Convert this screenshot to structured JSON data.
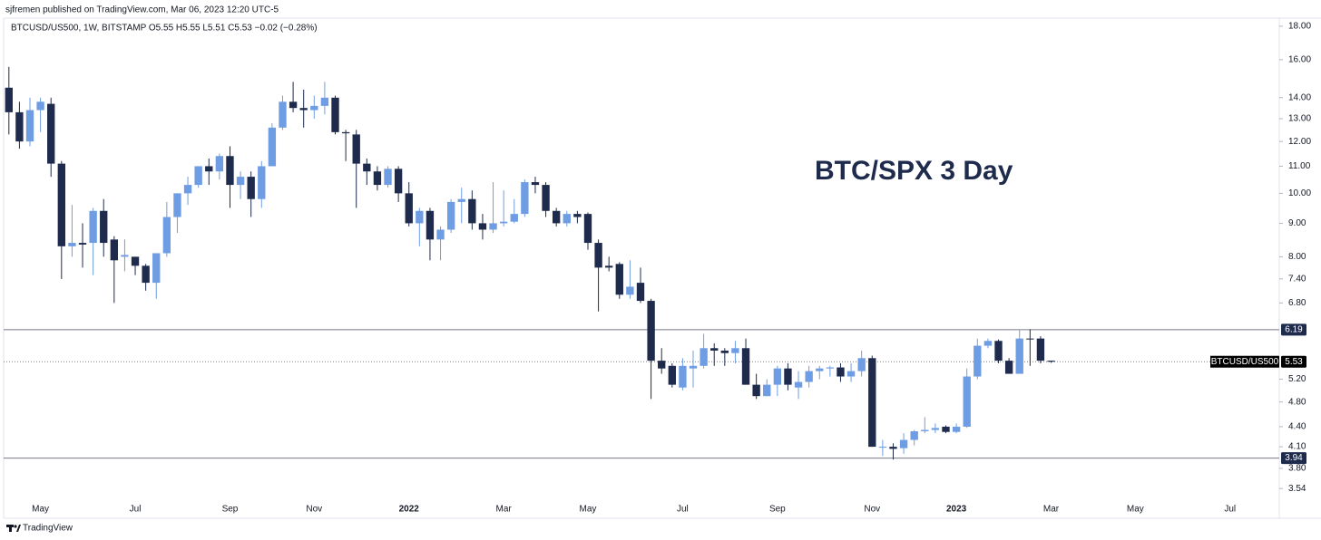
{
  "header": "sjfremen published on TradingView.com, Mar 06, 2023 12:20 UTC-5",
  "footer": "TradingView",
  "chart_data": {
    "type": "candlestick",
    "legend_text": "BTCUSD/US500, 1W, BITSTAMP  O5.55 H5.55 L5.51 C5.53 −0.02 (−0.28%)",
    "annotation": "BTC/SPX 3 Day",
    "log_scale": true,
    "up_color": "#6e9de3",
    "down_color": "#1f2b4c",
    "ylim": [
      3.42,
      18.52
    ],
    "yticks": [
      {
        "value": 18,
        "label": "18.00"
      },
      {
        "value": 16,
        "label": "16.00"
      },
      {
        "value": 14,
        "label": "14.00"
      },
      {
        "value": 13,
        "label": "13.00"
      },
      {
        "value": 12,
        "label": "12.00"
      },
      {
        "value": 11,
        "label": "11.00"
      },
      {
        "value": 10,
        "label": "10.00"
      },
      {
        "value": 9,
        "label": "9.00"
      },
      {
        "value": 8,
        "label": "8.00"
      },
      {
        "value": 7.4,
        "label": "7.40"
      },
      {
        "value": 6.8,
        "label": "6.80"
      },
      {
        "value": 5.2,
        "label": "5.20"
      },
      {
        "value": 4.8,
        "label": "4.80"
      },
      {
        "value": 4.4,
        "label": "4.40"
      },
      {
        "value": 4.1,
        "label": "4.10"
      },
      {
        "value": 3.8,
        "label": "3.80"
      },
      {
        "value": 3.54,
        "label": "3.54"
      }
    ],
    "hlines": [
      6.19,
      3.94
    ],
    "last": {
      "name": "BTCUSD/US500",
      "value": 5.53
    },
    "categories": [
      null,
      null,
      null,
      "May",
      null,
      null,
      null,
      null,
      null,
      null,
      null,
      null,
      "Jul",
      null,
      null,
      null,
      null,
      null,
      null,
      null,
      null,
      "Sep",
      null,
      null,
      null,
      null,
      null,
      null,
      null,
      "Nov",
      null,
      null,
      null,
      null,
      null,
      null,
      null,
      null,
      "2022",
      null,
      null,
      null,
      null,
      null,
      null,
      null,
      null,
      "Mar",
      null,
      null,
      null,
      null,
      null,
      null,
      null,
      "May",
      null,
      null,
      null,
      null,
      null,
      null,
      null,
      null,
      "Jul",
      null,
      null,
      null,
      null,
      null,
      null,
      null,
      null,
      "Sep",
      null,
      null,
      null,
      null,
      null,
      null,
      null,
      null,
      "Nov",
      null,
      null,
      null,
      null,
      null,
      null,
      null,
      "2023",
      null,
      null,
      null,
      null,
      null,
      null,
      null,
      null,
      "Mar",
      null,
      null,
      null,
      null,
      null,
      null,
      null,
      "May",
      null,
      null,
      null,
      null,
      null,
      null,
      null,
      null,
      "Jul",
      null,
      null,
      null,
      null
    ],
    "open": [
      14.5,
      13.3,
      12.0,
      13.4,
      13.7,
      11.1,
      8.3,
      8.4,
      8.4,
      9.4,
      8.5,
      8.0,
      8.0,
      7.75,
      7.3,
      8.1,
      9.2,
      10.0,
      10.3,
      11.0,
      10.8,
      11.4,
      10.3,
      10.6,
      9.8,
      11.0,
      12.6,
      13.8,
      13.5,
      13.4,
      13.6,
      14.0,
      12.4,
      12.3,
      11.1,
      10.8,
      10.3,
      10.9,
      10.0,
      9.0,
      9.4,
      8.5,
      8.8,
      9.7,
      9.8,
      9.0,
      8.8,
      9.0,
      9.05,
      9.3,
      10.4,
      10.3,
      9.4,
      9.0,
      9.3,
      9.3,
      8.4,
      7.75,
      7.8,
      7.0,
      7.3,
      6.85,
      5.55,
      5.45,
      5.05,
      5.4,
      5.45,
      5.8,
      5.75,
      5.7,
      5.8,
      5.1,
      4.9,
      5.1,
      5.4,
      5.05,
      5.15,
      5.35,
      5.4,
      5.42,
      5.25,
      5.35,
      5.6,
      4.1,
      4.1,
      4.08,
      4.2,
      4.33,
      4.35,
      4.4,
      4.32,
      4.4,
      5.25,
      5.85,
      5.95,
      5.55,
      5.3,
      6.0,
      6.0,
      5.55,
      null,
      null,
      null,
      null,
      null,
      null,
      null,
      null,
      null,
      null,
      null,
      null,
      null,
      null,
      null,
      null,
      null,
      null,
      null,
      null,
      null
    ],
    "high": [
      15.6,
      13.8,
      14.0,
      14.0,
      14.0,
      11.2,
      9.6,
      9.0,
      9.5,
      9.8,
      8.6,
      8.5,
      8.0,
      7.8,
      8.1,
      9.7,
      10.0,
      10.6,
      11.0,
      11.3,
      11.5,
      11.8,
      10.8,
      10.8,
      11.2,
      12.8,
      14.1,
      14.8,
      14.4,
      14.1,
      14.8,
      14.1,
      12.5,
      12.5,
      11.3,
      11.0,
      11.0,
      11.0,
      10.4,
      9.5,
      9.5,
      8.9,
      9.8,
      10.2,
      10.1,
      9.3,
      10.4,
      10.1,
      9.8,
      10.5,
      10.6,
      10.4,
      9.5,
      9.4,
      9.4,
      9.35,
      8.5,
      8.0,
      7.85,
      7.9,
      7.7,
      6.9,
      5.8,
      5.5,
      5.6,
      5.75,
      6.1,
      5.9,
      5.8,
      5.95,
      6.0,
      5.3,
      5.2,
      5.45,
      5.5,
      5.35,
      5.45,
      5.45,
      5.45,
      5.5,
      5.5,
      5.75,
      5.65,
      4.2,
      4.15,
      4.3,
      4.35,
      4.55,
      4.45,
      4.42,
      4.45,
      5.4,
      6.0,
      6.0,
      5.98,
      5.6,
      6.2,
      6.2,
      6.05,
      5.55,
      null,
      null,
      null,
      null,
      null,
      null,
      null,
      null,
      null,
      null,
      null,
      null,
      null,
      null,
      null,
      null,
      null,
      null,
      null,
      null,
      null
    ],
    "low": [
      12.3,
      11.7,
      11.8,
      12.4,
      10.6,
      7.4,
      8.0,
      7.7,
      7.5,
      8.0,
      6.8,
      7.6,
      7.5,
      7.1,
      6.9,
      8.0,
      8.7,
      9.6,
      10.2,
      10.3,
      10.5,
      9.5,
      9.8,
      9.2,
      9.5,
      11.0,
      12.5,
      13.3,
      12.6,
      13.0,
      13.2,
      12.3,
      11.2,
      9.5,
      10.3,
      10.1,
      10.2,
      9.7,
      8.9,
      8.3,
      7.9,
      7.9,
      8.7,
      9.0,
      8.8,
      8.5,
      8.7,
      8.9,
      9.0,
      9.2,
      10.0,
      9.2,
      8.9,
      8.9,
      9.0,
      8.2,
      6.6,
      7.6,
      6.9,
      6.9,
      6.8,
      4.85,
      5.3,
      5.05,
      5.0,
      5.05,
      5.4,
      5.45,
      5.45,
      5.5,
      5.1,
      4.85,
      4.9,
      4.9,
      5.0,
      4.85,
      5.05,
      5.2,
      5.25,
      5.15,
      5.15,
      5.25,
      4.1,
      3.97,
      3.92,
      4.0,
      4.12,
      4.3,
      4.3,
      4.3,
      4.3,
      4.38,
      5.2,
      5.8,
      5.5,
      5.3,
      5.3,
      5.45,
      5.5,
      5.51,
      null,
      null,
      null,
      null,
      null,
      null,
      null,
      null,
      null,
      null,
      null,
      null,
      null,
      null,
      null,
      null,
      null,
      null,
      null,
      null,
      null
    ],
    "close": [
      13.3,
      12.0,
      13.4,
      13.8,
      11.1,
      8.3,
      8.4,
      8.35,
      9.4,
      8.4,
      7.9,
      8.05,
      7.75,
      7.3,
      8.1,
      9.2,
      10.0,
      10.3,
      11.0,
      10.8,
      11.4,
      10.3,
      10.6,
      9.8,
      11.0,
      12.6,
      13.8,
      13.5,
      13.4,
      13.6,
      14.0,
      12.4,
      12.35,
      11.1,
      10.8,
      10.3,
      10.9,
      10.0,
      9.0,
      9.4,
      8.5,
      8.8,
      9.7,
      9.8,
      9.0,
      8.8,
      9.0,
      9.05,
      9.3,
      10.4,
      10.3,
      9.4,
      9.0,
      9.3,
      9.2,
      8.4,
      7.7,
      7.7,
      7.0,
      7.2,
      6.85,
      5.55,
      5.4,
      5.1,
      5.45,
      5.45,
      5.8,
      5.75,
      5.7,
      5.8,
      5.1,
      4.9,
      5.1,
      5.4,
      5.1,
      5.15,
      5.35,
      5.4,
      5.42,
      5.25,
      5.35,
      5.6,
      4.1,
      4.1,
      4.07,
      4.2,
      4.33,
      4.35,
      4.38,
      4.32,
      4.4,
      5.25,
      5.85,
      5.95,
      5.55,
      5.3,
      6.0,
      5.98,
      5.55,
      5.53,
      null,
      null,
      null,
      null,
      null,
      null,
      null,
      null,
      null,
      null,
      null,
      null,
      null,
      null,
      null,
      null,
      null,
      null,
      null,
      null,
      null
    ]
  }
}
